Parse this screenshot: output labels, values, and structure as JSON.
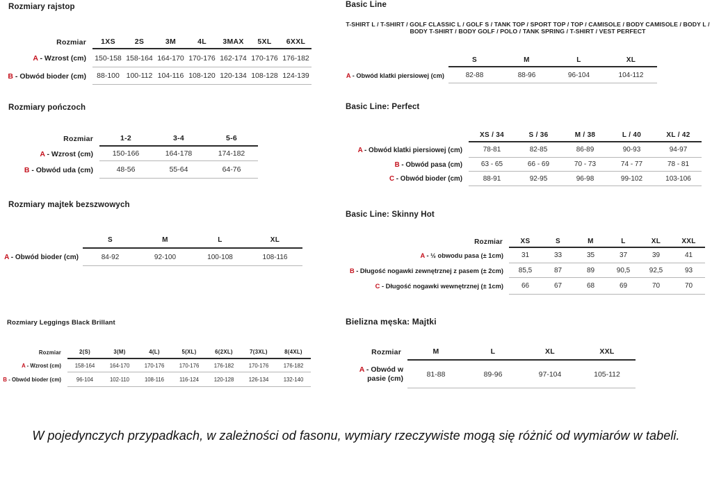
{
  "colors": {
    "accent": "#c4111d",
    "text": "#1c1c1c",
    "rule_dark": "#2a2a2a",
    "rule_light": "#b5b5b5"
  },
  "sections": {
    "rajstop": {
      "title": "Rozmiary rajstop"
    },
    "ponczoch": {
      "title": "Rozmiary pończoch"
    },
    "majtek": {
      "title": "Rozmiary majtek bezszwowych"
    },
    "leggings": {
      "title": "Rozmiary Leggings Black Brillant"
    },
    "basic": {
      "title": "Basic Line",
      "subtitle": "T-SHIRT L / T-SHIRT / GOLF CLASSIC L / GOLF S / TANK TOP / SPORT TOP / TOP / CAMISOLE / BODY CAMISOLE / BODY L / BODY T-SHIRT / BODY GOLF / POLO / TANK SPRING / T-SHIRT / VEST PERFECT"
    },
    "perfect": {
      "title": "Basic Line: Perfect"
    },
    "skinny": {
      "title": "Basic Line: Skinny Hot"
    },
    "bielizna": {
      "title": "Bielizna męska: Majtki"
    }
  },
  "note": "W pojedynczych przypadkach, w zależności od fasonu, wymiary rzeczywiste mogą się różnić od wymiarów w tabeli.",
  "tables": [
    {
      "id": "rajstop",
      "corner": "Rozmiar",
      "columns": [
        "1XS",
        "2S",
        "3M",
        "4L",
        "3MAX",
        "5XL",
        "6XXL"
      ],
      "rows": [
        {
          "letter": "A",
          "label": "- Wzrost (cm)",
          "values": [
            "150-158",
            "158-164",
            "164-170",
            "170-176",
            "162-174",
            "170-176",
            "176-182"
          ]
        },
        {
          "letter": "B",
          "label": "- Obwód bioder (cm)",
          "values": [
            "88-100",
            "100-112",
            "104-116",
            "108-120",
            "120-134",
            "108-128",
            "124-139"
          ]
        }
      ]
    },
    {
      "id": "ponczoch",
      "corner": "Rozmiar",
      "columns": [
        "1-2",
        "3-4",
        "5-6"
      ],
      "rows": [
        {
          "letter": "A",
          "label": "- Wzrost (cm)",
          "values": [
            "150-166",
            "164-178",
            "174-182"
          ]
        },
        {
          "letter": "B",
          "label": "- Obwód uda (cm)",
          "values": [
            "48-56",
            "55-64",
            "64-76"
          ]
        }
      ]
    },
    {
      "id": "majtek",
      "corner": "",
      "columns": [
        "S",
        "M",
        "L",
        "XL"
      ],
      "rows": [
        {
          "letter": "A",
          "label": "- Obwód bioder (cm)",
          "values": [
            "84-92",
            "92-100",
            "100-108",
            "108-116"
          ]
        }
      ]
    },
    {
      "id": "leggings",
      "corner": "Rozmiar",
      "columns": [
        "2(S)",
        "3(M)",
        "4(L)",
        "5(XL)",
        "6(2XL)",
        "7(3XL)",
        "8(4XL)"
      ],
      "rows": [
        {
          "letter": "A",
          "label": "- Wzrost (cm)",
          "values": [
            "158-164",
            "164-170",
            "170-176",
            "170-176",
            "176-182",
            "170-176",
            "176-182"
          ]
        },
        {
          "letter": "B",
          "label": "- Obwód bioder (cm)",
          "values": [
            "96-104",
            "102-110",
            "108-116",
            "116-124",
            "120-128",
            "126-134",
            "132-140"
          ]
        }
      ]
    },
    {
      "id": "basic",
      "corner": "",
      "columns": [
        "S",
        "M",
        "L",
        "XL"
      ],
      "rows": [
        {
          "letter": "A",
          "label": "- Obwód klatki piersiowej (cm)",
          "values": [
            "82-88",
            "88-96",
            "96-104",
            "104-112"
          ]
        }
      ]
    },
    {
      "id": "perfect",
      "corner": "",
      "columns": [
        "XS / 34",
        "S / 36",
        "M / 38",
        "L / 40",
        "XL / 42"
      ],
      "rows": [
        {
          "letter": "A",
          "label": "- Obwód klatki piersiowej (cm)",
          "values": [
            "78-81",
            "82-85",
            "86-89",
            "90-93",
            "94-97"
          ]
        },
        {
          "letter": "B",
          "label": "- Obwód pasa (cm)",
          "values": [
            "63 - 65",
            "66 - 69",
            "70 - 73",
            "74 - 77",
            "78 - 81"
          ]
        },
        {
          "letter": "C",
          "label": "- Obwód bioder (cm)",
          "values": [
            "88-91",
            "92-95",
            "96-98",
            "99-102",
            "103-106"
          ]
        }
      ]
    },
    {
      "id": "skinny",
      "corner": "Rozmiar",
      "columns": [
        "XS",
        "S",
        "M",
        "L",
        "XL",
        "XXL"
      ],
      "rows": [
        {
          "letter": "A",
          "label": "- ½ obwodu pasa (± 1cm)",
          "values": [
            "31",
            "33",
            "35",
            "37",
            "39",
            "41"
          ]
        },
        {
          "letter": "B",
          "label": "- Długość nogawki zewnętrznej z pasem (± 2cm)",
          "values": [
            "85,5",
            "87",
            "89",
            "90,5",
            "92,5",
            "93"
          ]
        },
        {
          "letter": "C",
          "label": "- Długość nogawki wewnętrznej (± 1cm)",
          "values": [
            "66",
            "67",
            "68",
            "69",
            "70",
            "70"
          ]
        }
      ]
    },
    {
      "id": "bielizna",
      "corner": "Rozmiar",
      "columns": [
        "M",
        "L",
        "XL",
        "XXL"
      ],
      "rows": [
        {
          "letter": "A",
          "label": "- Obwód w pasie (cm)",
          "values": [
            "81-88",
            "89-96",
            "97-104",
            "105-112"
          ]
        }
      ]
    }
  ]
}
